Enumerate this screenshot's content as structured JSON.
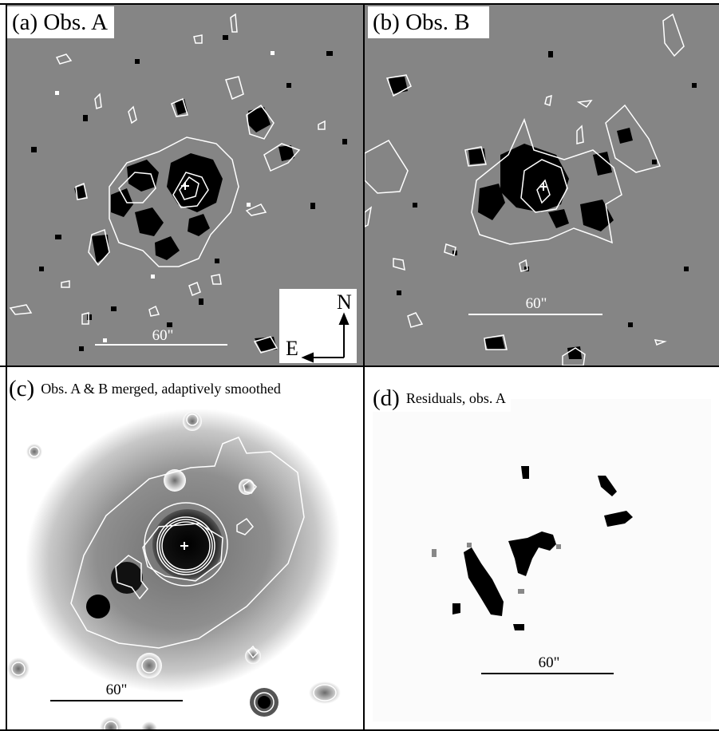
{
  "panels": {
    "a": {
      "label": "(a) Obs. A",
      "scale": "60\""
    },
    "b": {
      "label": "(b) Obs. B",
      "scale": "60\""
    },
    "c": {
      "label_prefix": "(c)",
      "label_text": "Obs. A & B merged, adaptively smoothed",
      "scale": "60\""
    },
    "d": {
      "label_prefix": "(d)",
      "label_text": "Residuals, obs. A",
      "scale": "60\""
    }
  },
  "compass": {
    "north": "N",
    "east": "E"
  },
  "colors": {
    "background_gray": "#858585",
    "contour": "#ffffff",
    "border": "#000000"
  }
}
